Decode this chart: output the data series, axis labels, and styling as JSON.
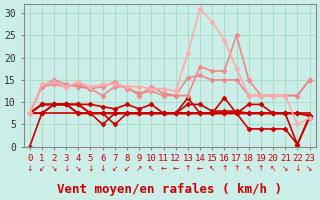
{
  "bg_color": "#cceee8",
  "grid_color": "#aaddcc",
  "xlabel": "Vent moyen/en rafales ( km/h )",
  "xlabel_color": "#cc0000",
  "xlabel_fontsize": 9,
  "xtick_fontsize": 6.5,
  "ytick_fontsize": 7,
  "xlim": [
    -0.5,
    23.5
  ],
  "ylim": [
    0,
    32
  ],
  "yticks": [
    0,
    5,
    10,
    15,
    20,
    25,
    30
  ],
  "xticks": [
    0,
    1,
    2,
    3,
    4,
    5,
    6,
    7,
    8,
    9,
    10,
    11,
    12,
    13,
    14,
    15,
    16,
    17,
    18,
    19,
    20,
    21,
    22,
    23
  ],
  "series": [
    {
      "x": [
        0,
        1,
        2,
        3,
        4,
        5,
        6,
        7,
        8,
        9,
        10,
        11,
        12,
        13,
        14,
        15,
        16,
        17,
        18,
        19,
        20,
        21,
        22,
        23
      ],
      "y": [
        7.5,
        7.5,
        7.5,
        7.5,
        7.5,
        7.5,
        7.5,
        7.5,
        7.5,
        7.5,
        7.5,
        7.5,
        7.5,
        7.5,
        7.5,
        7.5,
        7.5,
        7.5,
        7.5,
        7.5,
        7.5,
        7.5,
        7.5,
        7.5
      ],
      "color": "#cc0000",
      "linewidth": 1.2,
      "marker": "none",
      "markersize": 2
    },
    {
      "x": [
        0,
        1,
        2,
        3,
        4,
        5,
        6,
        7,
        8,
        9,
        10,
        11,
        12,
        13,
        14,
        15,
        16,
        17,
        18,
        19,
        20,
        21,
        22,
        23
      ],
      "y": [
        0,
        7.5,
        9.5,
        9.5,
        7.5,
        7.5,
        7.5,
        5,
        7.5,
        7.5,
        7.5,
        7.5,
        7.5,
        7.5,
        7.5,
        7.5,
        7.5,
        7.5,
        4,
        4,
        4,
        4,
        0.5,
        6.5
      ],
      "color": "#cc0000",
      "linewidth": 1.2,
      "marker": "D",
      "markersize": 2.5
    },
    {
      "x": [
        0,
        1,
        2,
        3,
        4,
        5,
        6,
        7,
        8,
        9,
        10,
        11,
        12,
        13,
        14,
        15,
        16,
        17,
        18,
        19,
        20,
        21,
        22,
        23
      ],
      "y": [
        7.5,
        7.5,
        9.5,
        9.5,
        7.5,
        7.5,
        5,
        7.5,
        7.5,
        7.5,
        7.5,
        7.5,
        7.5,
        11,
        7.5,
        7.5,
        11,
        7.5,
        9.5,
        9.5,
        7.5,
        7.5,
        0.5,
        7
      ],
      "color": "#cc0000",
      "linewidth": 1.2,
      "marker": "D",
      "markersize": 2.5
    },
    {
      "x": [
        0,
        1,
        2,
        3,
        4,
        5,
        6,
        7,
        8,
        9,
        10,
        11,
        12,
        13,
        14,
        15,
        16,
        17,
        18,
        19,
        20,
        21,
        22,
        23
      ],
      "y": [
        7.5,
        9.5,
        9.5,
        9.5,
        9.5,
        7.5,
        7.5,
        7.5,
        7.5,
        7.5,
        7.5,
        7.5,
        7.5,
        7.5,
        7.5,
        7.5,
        7.5,
        7.5,
        7.5,
        7.5,
        7.5,
        7.5,
        7.5,
        7
      ],
      "color": "#cc0000",
      "linewidth": 1.5,
      "marker": "D",
      "markersize": 2.5
    },
    {
      "x": [
        0,
        1,
        2,
        3,
        4,
        5,
        6,
        7,
        8,
        9,
        10,
        11,
        12,
        13,
        14,
        15,
        16,
        17,
        18,
        19,
        20,
        21,
        22,
        23
      ],
      "y": [
        7.5,
        9.5,
        9.5,
        9.5,
        9.5,
        9.5,
        9,
        8.5,
        9.5,
        8.5,
        9.5,
        7.5,
        7.5,
        9.5,
        9.5,
        8,
        8,
        8,
        7.5,
        7.5,
        7.5,
        7.5,
        7.5,
        7
      ],
      "color": "#cc0000",
      "linewidth": 1.2,
      "marker": "D",
      "markersize": 2.5
    },
    {
      "x": [
        0,
        1,
        2,
        3,
        4,
        5,
        6,
        7,
        8,
        9,
        10,
        11,
        12,
        13,
        14,
        15,
        16,
        17,
        18,
        19,
        20,
        21,
        22,
        23
      ],
      "y": [
        7.5,
        13.5,
        15,
        14,
        13.5,
        13,
        11.5,
        13.5,
        13.5,
        11.5,
        13.5,
        12,
        11.5,
        15.5,
        16,
        15,
        15,
        15,
        11.5,
        11.5,
        11.5,
        11.5,
        11.5,
        15
      ],
      "color": "#ee8888",
      "linewidth": 1.2,
      "marker": "D",
      "markersize": 2.5
    },
    {
      "x": [
        0,
        1,
        2,
        3,
        4,
        5,
        6,
        7,
        8,
        9,
        10,
        11,
        12,
        13,
        14,
        15,
        16,
        17,
        18,
        19,
        20,
        21,
        22,
        23
      ],
      "y": [
        7.5,
        13.5,
        14,
        13.5,
        14,
        13,
        13.5,
        14.5,
        13,
        12,
        12.5,
        11.5,
        11.5,
        11.5,
        18,
        17,
        17,
        25,
        15,
        11.5,
        11.5,
        11.5,
        11.5,
        15
      ],
      "color": "#ee8888",
      "linewidth": 1.2,
      "marker": "D",
      "markersize": 2.5
    },
    {
      "x": [
        0,
        1,
        2,
        3,
        4,
        5,
        6,
        7,
        8,
        9,
        10,
        11,
        12,
        13,
        14,
        15,
        16,
        17,
        18,
        19,
        20,
        21,
        22,
        23
      ],
      "y": [
        7.5,
        14,
        14.5,
        13.5,
        14.5,
        13.5,
        14,
        14,
        13.5,
        13.5,
        13,
        13,
        12.5,
        21,
        31,
        28,
        24,
        17.5,
        11.5,
        11.5,
        11.5,
        11.5,
        5,
        6.5
      ],
      "color": "#ffaaaa",
      "linewidth": 1.2,
      "marker": "D",
      "markersize": 2.5
    }
  ],
  "arrow_chars": [
    "↓",
    "↙",
    "↘",
    "↓",
    "↘",
    "↓",
    "↓",
    "↙",
    "↙",
    "↗",
    "↖",
    "←",
    "←",
    "↑",
    "←",
    "↖",
    "↑",
    "↑",
    "↖",
    "↑",
    "↖",
    "↘",
    "↓",
    "↘"
  ]
}
